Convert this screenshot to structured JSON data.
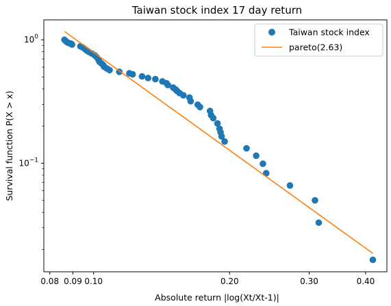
{
  "chart_data": {
    "type": "scatter",
    "title": "Taiwan stock index 17 day return",
    "xlabel": "Absolute return |log(Xt/Xt-1)|",
    "ylabel": "Survival function P(X > x)",
    "xscale": "log",
    "yscale": "log",
    "xlim": [
      0.0776,
      0.4458
    ],
    "ylim": [
      0.0132,
      1.45
    ],
    "x_ticks": [
      {
        "value": 0.08,
        "label": "0.08"
      },
      {
        "value": 0.09,
        "label": "0.09"
      },
      {
        "value": 0.1,
        "label": "0.10"
      },
      {
        "value": 0.2,
        "label": "0.20"
      },
      {
        "value": 0.3,
        "label": "0.30"
      },
      {
        "value": 0.4,
        "label": "0.40"
      }
    ],
    "y_ticks": [
      {
        "value": 1,
        "label": "10^0",
        "base": "10",
        "exp": "0"
      },
      {
        "value": 0.1,
        "label": "10^-1",
        "base": "10",
        "exp": "−1"
      }
    ],
    "y_minor_ticks": [
      0.02,
      0.03,
      0.04,
      0.05,
      0.06,
      0.07,
      0.08,
      0.09,
      0.2,
      0.3,
      0.4,
      0.5,
      0.6,
      0.7,
      0.8,
      0.9
    ],
    "legend_position": "top-right",
    "series": [
      {
        "name": "Taiwan stock index",
        "kind": "scatter",
        "color": "#1f77b4",
        "points": [
          [
            0.0862,
            1.0
          ],
          [
            0.0868,
            0.975
          ],
          [
            0.0874,
            0.955
          ],
          [
            0.0882,
            0.94
          ],
          [
            0.0892,
            0.93
          ],
          [
            0.0896,
            0.915
          ],
          [
            0.0935,
            0.885
          ],
          [
            0.0945,
            0.87
          ],
          [
            0.0955,
            0.845
          ],
          [
            0.0965,
            0.82
          ],
          [
            0.0975,
            0.8
          ],
          [
            0.099,
            0.775
          ],
          [
            0.1005,
            0.75
          ],
          [
            0.1015,
            0.725
          ],
          [
            0.1025,
            0.69
          ],
          [
            0.103,
            0.665
          ],
          [
            0.104,
            0.645
          ],
          [
            0.105,
            0.625
          ],
          [
            0.1055,
            0.605
          ],
          [
            0.107,
            0.585
          ],
          [
            0.1085,
            0.568
          ],
          [
            0.114,
            0.55
          ],
          [
            0.12,
            0.535
          ],
          [
            0.122,
            0.525
          ],
          [
            0.128,
            0.505
          ],
          [
            0.132,
            0.49
          ],
          [
            0.137,
            0.48
          ],
          [
            0.142,
            0.46
          ],
          [
            0.145,
            0.445
          ],
          [
            0.146,
            0.43
          ],
          [
            0.15,
            0.41
          ],
          [
            0.152,
            0.395
          ],
          [
            0.153,
            0.385
          ],
          [
            0.155,
            0.37
          ],
          [
            0.158,
            0.355
          ],
          [
            0.163,
            0.34
          ],
          [
            0.164,
            0.318
          ],
          [
            0.17,
            0.298
          ],
          [
            0.172,
            0.285
          ],
          [
            0.181,
            0.265
          ],
          [
            0.182,
            0.245
          ],
          [
            0.184,
            0.232
          ],
          [
            0.188,
            0.21
          ],
          [
            0.19,
            0.19
          ],
          [
            0.191,
            0.178
          ],
          [
            0.192,
            0.165
          ],
          [
            0.195,
            0.15
          ],
          [
            0.218,
            0.132
          ],
          [
            0.229,
            0.115
          ],
          [
            0.237,
            0.099
          ],
          [
            0.241,
            0.083
          ],
          [
            0.272,
            0.066
          ],
          [
            0.309,
            0.05
          ],
          [
            0.315,
            0.033
          ],
          [
            0.415,
            0.0165
          ]
        ]
      },
      {
        "name": "pareto(2.63)",
        "kind": "line",
        "color": "#ff7f0e",
        "alpha": 2.63,
        "x": [
          0.0863,
          0.415
        ],
        "y": [
          1.165,
          0.0186
        ]
      }
    ]
  }
}
